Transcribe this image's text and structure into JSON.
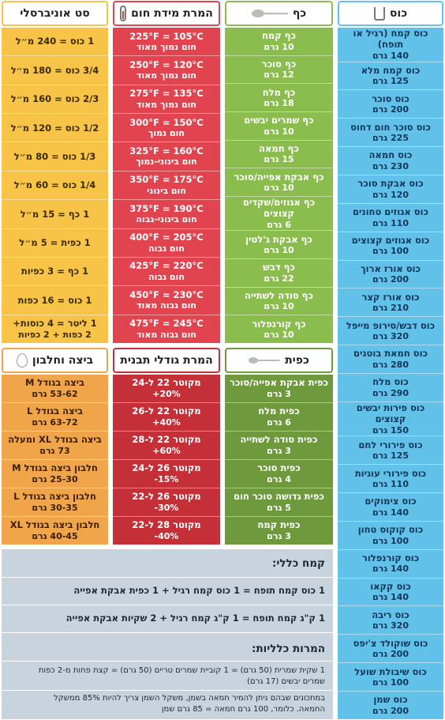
{
  "columns": {
    "cup": {
      "title": "כוס",
      "icon": "measuring-cup-icon",
      "color": "#62c1e8",
      "items": [
        {
          "name": "כוס קמח (רגיל או תופח)",
          "amount": "140 גרם"
        },
        {
          "name": "כוס קמח מלא",
          "amount": "125 גרם"
        },
        {
          "name": "כוס סוכר",
          "amount": "200 גרם"
        },
        {
          "name": "כוס סוכר חום דחוס",
          "amount": "225 גרם"
        },
        {
          "name": "כוס חמאה",
          "amount": "230 גרם"
        },
        {
          "name": "כוס אבקת סוכר",
          "amount": "120 גרם"
        },
        {
          "name": "כוס אגוזים טחונים",
          "amount": "110 גרם"
        },
        {
          "name": "כוס אגוזים קצוצים",
          "amount": "100 גרם"
        },
        {
          "name": "כוס אורז ארוך",
          "amount": "200 גרם"
        },
        {
          "name": "כוס אורז קצר",
          "amount": "210 גרם"
        },
        {
          "name": "כוס דבש/סירופ מייפל",
          "amount": "320 גרם"
        },
        {
          "name": "כוס חמאת בוטנים",
          "amount": "280 גרם"
        },
        {
          "name": "כוס מלח",
          "amount": "290 גרם"
        },
        {
          "name": "כוס פירות יבשים קצוצים",
          "amount": "150 גרם"
        },
        {
          "name": "כוס פירורי לחם",
          "amount": "125 גרם"
        },
        {
          "name": "כוס פירורי עוגיות",
          "amount": "110 גרם"
        },
        {
          "name": "כוס צימוקים",
          "amount": "140 גרם"
        },
        {
          "name": "כוס קוקוס טחון",
          "amount": "100 גרם"
        },
        {
          "name": "כוס קורנפלור",
          "amount": "140 גרם"
        },
        {
          "name": "כוס קקאו",
          "amount": "140 גרם"
        },
        {
          "name": "כוס ריבה",
          "amount": "320 גרם"
        },
        {
          "name": "כוס שוקולד צ'יפס",
          "amount": "200 גרם"
        },
        {
          "name": "כוס שיבולת שועל",
          "amount": "100 גרם"
        },
        {
          "name": "כוס שמן",
          "amount": "200 גרם"
        }
      ]
    },
    "spoon": {
      "title": "כף",
      "icon": "spoon-icon",
      "color": "#8bbd4e",
      "items": [
        {
          "name": "כף קמח",
          "amount": "10 גרם"
        },
        {
          "name": "כף סוכר",
          "amount": "12 גרם"
        },
        {
          "name": "כף מלח",
          "amount": "18 גרם"
        },
        {
          "name": "כף שמרים יבשים",
          "amount": "10 גרם"
        },
        {
          "name": "כף חמאה",
          "amount": "15 גרם"
        },
        {
          "name": "כף אבקת אפייה/סוכר",
          "amount": "10 גרם"
        },
        {
          "name": "כף אגוזים/שקדים קצוצים",
          "amount": "6 גרם"
        },
        {
          "name": "כף אבקת ג'לטין",
          "amount": "10 גרם"
        },
        {
          "name": "כף דבש",
          "amount": "22 גרם"
        },
        {
          "name": "כף סודה לשתייה",
          "amount": "10 גרם"
        },
        {
          "name": "כף קורנפלור",
          "amount": "10 גרם"
        }
      ]
    },
    "temperature": {
      "title": "המרת מידת חום",
      "icon": "thermometer-icon",
      "color": "#e2444f",
      "items": [
        {
          "name": "225°F = 105°C",
          "amount": "חום נמוך מאוד"
        },
        {
          "name": "250°F = 120°C",
          "amount": "חום נמוך מאוד"
        },
        {
          "name": "275°F = 135°C",
          "amount": "חום נמוך מאוד"
        },
        {
          "name": "300°F = 150°C",
          "amount": "חום נמוך"
        },
        {
          "name": "325°F = 160°C",
          "amount": "חום בינוני-נמוך"
        },
        {
          "name": "350°F = 175°C",
          "amount": "חום בינוני"
        },
        {
          "name": "375°F = 190°C",
          "amount": "חום בינוני-גבוה"
        },
        {
          "name": "400°F = 205°C",
          "amount": "חום גבוה"
        },
        {
          "name": "425°F = 220°C",
          "amount": "חום גבוה"
        },
        {
          "name": "450°F = 230°C",
          "amount": "חום גבוה מאוד"
        },
        {
          "name": "475°F = 245°C",
          "amount": "חום גבוה מאוד"
        }
      ]
    },
    "universal": {
      "title": "סט אוניברסלי",
      "color": "#f7c447",
      "items": [
        {
          "name": "1 כוס = 240 מ״ל",
          "amount": ""
        },
        {
          "name": "3/4 כוס = 180 מ״ל",
          "amount": ""
        },
        {
          "name": "2/3 כוס = 160 מ״ל",
          "amount": ""
        },
        {
          "name": "1/2 כוס = 120 מ״ל",
          "amount": ""
        },
        {
          "name": "1/3 כוס = 80 מ״ל",
          "amount": ""
        },
        {
          "name": "1/4 כוס = 60 מ״ל",
          "amount": ""
        },
        {
          "name": "1 כף = 15 מ״ל",
          "amount": ""
        },
        {
          "name": "1 כפית = 5 מ״ל",
          "amount": ""
        },
        {
          "name": "1 כף = 3 כפיות",
          "amount": ""
        },
        {
          "name": "1 כוס = 16 כפות",
          "amount": ""
        },
        {
          "name": "1 ליטר = 4 כוסות+",
          "amount": "2 כפות + 2 כפיות"
        }
      ]
    },
    "teaspoon": {
      "title": "כפית",
      "icon": "teaspoon-icon",
      "color": "#6e9a3d",
      "items": [
        {
          "name": "כפית אבקת אפייה/סוכר",
          "amount": "3 גרם"
        },
        {
          "name": "כפית מלח",
          "amount": "6 גרם"
        },
        {
          "name": "כפית סודה לשתייה",
          "amount": "3 גרם"
        },
        {
          "name": "כפית סוכר",
          "amount": "4 גרם"
        },
        {
          "name": "כפית גדושה סוכר חום",
          "amount": "5 גרם"
        },
        {
          "name": "כפית קמח",
          "amount": "3 גרם"
        }
      ]
    },
    "pans": {
      "title": "המרת גודלי תבנית",
      "color": "#c42f38",
      "items": [
        {
          "name": "מקוטר 22 ל-24",
          "amount": "+20%"
        },
        {
          "name": "מקוטר 22 ל-26",
          "amount": "+40%"
        },
        {
          "name": "מקוטר 22 ל-28",
          "amount": "+60%"
        },
        {
          "name": "מקוטר 26 ל-24",
          "amount": "-15%"
        },
        {
          "name": "מקוטר 26 ל-22",
          "amount": "-30%"
        },
        {
          "name": "מקוטר 28 ל-22",
          "amount": "-40%"
        }
      ]
    },
    "eggs": {
      "title": "ביצה וחלבון",
      "icon": "egg-icon",
      "color": "#f0a54a",
      "items": [
        {
          "name": "ביצה בגודל M",
          "amount": "53-62 גרם"
        },
        {
          "name": "ביצה בגודל L",
          "amount": "63-72 גרם"
        },
        {
          "name": "ביצה בגודל XL ומעלה",
          "amount": "73 גרם"
        },
        {
          "name": "חלבון ביצה בגודל M",
          "amount": "25-30 גרם"
        },
        {
          "name": "חלבון ביצה בגודל L",
          "amount": "30-35 גרם"
        },
        {
          "name": "חלבון ביצה בגודל XL",
          "amount": "40-45 גרם"
        }
      ]
    }
  },
  "notes": {
    "color": "#c9d3dd",
    "flour_title": "קמח כללי:",
    "flour_1": "1 כוס קמח תופח = 1 כוס קמח רגיל + 1 כפית אבקת אפייה",
    "flour_2": "1 ק\"ג קמח תופח = 1 ק\"ג קמח רגיל + 2 שקיות אבקת אפייה",
    "general_title": "המרות כלליות:",
    "general_1a": "1 שקית שמרית (50 גרם) = 1 קוביית שמרים טריים (50 גרם) = קצת פחות מ-2 כפות",
    "general_1b": "שמרים יבשים (17 גרם)",
    "general_2a": "במתכונים שבהם ניתן להמיר חמאה בשמן, משקל השמן צריך להיות 85% ממשקל",
    "general_2b": "החמאה. כלומר, 100 גרם חמאה = 85 גרם שמן"
  }
}
